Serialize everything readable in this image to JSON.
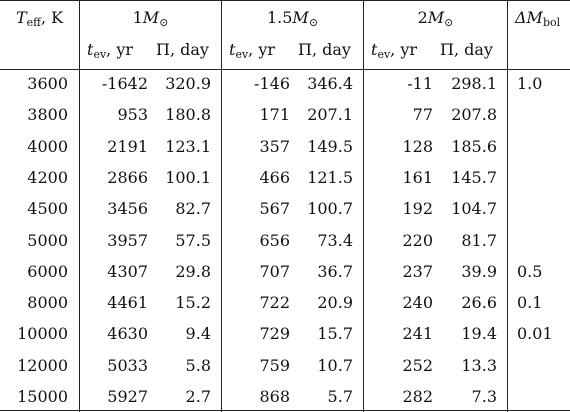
{
  "header": {
    "teff_main": "T",
    "teff_sub": "eff",
    "teff_unit": ", K",
    "groups": [
      {
        "mass_num": "1",
        "mass_sym": "M",
        "mass_sub": "⊙"
      },
      {
        "mass_num": "1.5",
        "mass_sym": "M",
        "mass_sub": "⊙"
      },
      {
        "mass_num": "2",
        "mass_sym": "M",
        "mass_sub": "⊙"
      }
    ],
    "dm_main": "ΔM",
    "dm_sub": "bol",
    "tev_main": "t",
    "tev_sub": "ev",
    "tev_unit": ", yr",
    "pi_label": "Π, day"
  },
  "rows": [
    {
      "teff": "3600",
      "v": [
        "-1642",
        "320.9",
        "-146",
        "346.4",
        "-11",
        "298.1"
      ],
      "dm": "1.0"
    },
    {
      "teff": "3800",
      "v": [
        "953",
        "180.8",
        "171",
        "207.1",
        "77",
        "207.8"
      ],
      "dm": ""
    },
    {
      "teff": "4000",
      "v": [
        "2191",
        "123.1",
        "357",
        "149.5",
        "128",
        "185.6"
      ],
      "dm": ""
    },
    {
      "teff": "4200",
      "v": [
        "2866",
        "100.1",
        "466",
        "121.5",
        "161",
        "145.7"
      ],
      "dm": ""
    },
    {
      "teff": "4500",
      "v": [
        "3456",
        "82.7",
        "567",
        "100.7",
        "192",
        "104.7"
      ],
      "dm": ""
    },
    {
      "teff": "5000",
      "v": [
        "3957",
        "57.5",
        "656",
        "73.4",
        "220",
        "81.7"
      ],
      "dm": ""
    },
    {
      "teff": "6000",
      "v": [
        "4307",
        "29.8",
        "707",
        "36.7",
        "237",
        "39.9"
      ],
      "dm": "0.5"
    },
    {
      "teff": "8000",
      "v": [
        "4461",
        "15.2",
        "722",
        "20.9",
        "240",
        "26.6"
      ],
      "dm": "0.1"
    },
    {
      "teff": "10000",
      "v": [
        "4630",
        "9.4",
        "729",
        "15.7",
        "241",
        "19.4"
      ],
      "dm": "0.01"
    },
    {
      "teff": "12000",
      "v": [
        "5033",
        "5.8",
        "759",
        "10.7",
        "252",
        "13.3"
      ],
      "dm": ""
    },
    {
      "teff": "15000",
      "v": [
        "5927",
        "2.7",
        "868",
        "5.7",
        "282",
        "7.3"
      ],
      "dm": ""
    }
  ]
}
